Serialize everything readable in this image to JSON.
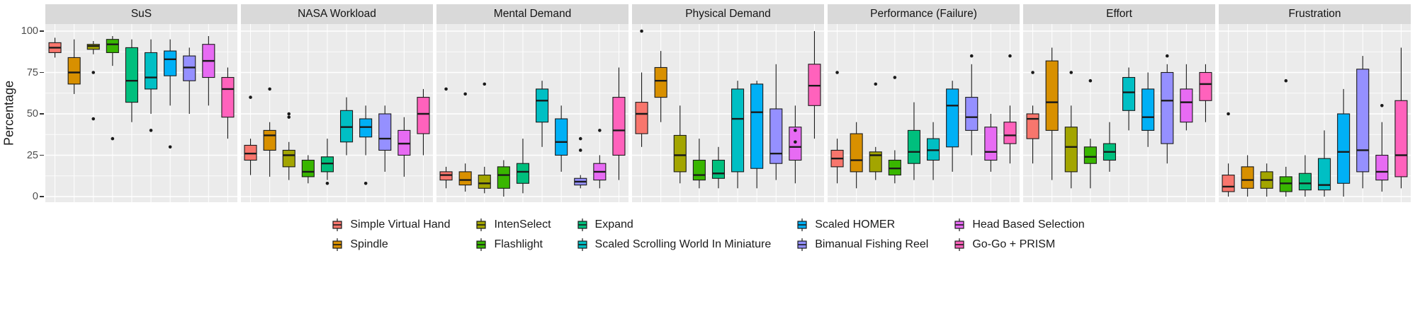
{
  "figure": {
    "ylabel": "Percentage"
  },
  "y_axis": {
    "ticks": [
      0,
      25,
      50,
      75,
      100
    ]
  },
  "chart_data": {
    "type": "boxplot",
    "ylabel": "Percentage",
    "ylim": [
      0,
      100
    ],
    "y_ticks": [
      0,
      25,
      50,
      75,
      100
    ],
    "grid": true,
    "legend_position": "bottom",
    "box_format": [
      "low_whisker",
      "q1",
      "median",
      "q3",
      "high_whisker"
    ],
    "techniques": [
      {
        "label": "Simple Virtual Hand",
        "color": "#F8766D"
      },
      {
        "label": "Spindle",
        "color": "#D89000"
      },
      {
        "label": "IntenSelect",
        "color": "#A3A500"
      },
      {
        "label": "Flashlight",
        "color": "#39B600"
      },
      {
        "label": "Expand",
        "color": "#00BF7D"
      },
      {
        "label": "Scaled Scrolling World In Miniature",
        "color": "#00BFC4"
      },
      {
        "label": "Scaled HOMER",
        "color": "#00B0F6"
      },
      {
        "label": "Bimanual Fishing Reel",
        "color": "#9590FF"
      },
      {
        "label": "Head Based Selection",
        "color": "#E76BF3"
      },
      {
        "label": "Go-Go + PRISM",
        "color": "#FF62BC"
      }
    ],
    "facets": [
      {
        "title": "SuS",
        "boxes": [
          [
            84,
            87,
            90,
            93,
            96
          ],
          [
            62,
            68,
            75,
            84,
            95
          ],
          [
            86,
            89,
            91,
            92,
            94
          ],
          [
            79,
            87,
            92,
            95,
            97
          ],
          [
            45,
            57,
            70,
            90,
            95
          ],
          [
            50,
            65,
            72,
            87,
            95
          ],
          [
            55,
            73,
            83,
            88,
            95
          ],
          [
            50,
            70,
            78,
            85,
            90
          ],
          [
            55,
            72,
            82,
            92,
            97
          ],
          [
            35,
            48,
            65,
            72,
            78
          ]
        ],
        "outliers": [
          [],
          [],
          [
            75,
            47
          ],
          [
            35
          ],
          [],
          [
            40
          ],
          [
            30
          ],
          [],
          [],
          []
        ]
      },
      {
        "title": "NASA Workload",
        "boxes": [
          [
            13,
            22,
            26,
            31,
            35
          ],
          [
            12,
            28,
            37,
            40,
            45
          ],
          [
            10,
            18,
            25,
            28,
            33
          ],
          [
            8,
            12,
            15,
            22,
            25
          ],
          [
            10,
            15,
            20,
            24,
            35
          ],
          [
            25,
            33,
            42,
            52,
            60
          ],
          [
            25,
            36,
            42,
            47,
            55
          ],
          [
            15,
            28,
            35,
            50,
            55
          ],
          [
            12,
            25,
            32,
            40,
            48
          ],
          [
            25,
            38,
            50,
            60,
            65
          ]
        ],
        "outliers": [
          [
            60
          ],
          [
            65
          ],
          [
            48,
            50
          ],
          [],
          [
            8
          ],
          [],
          [
            8
          ],
          [],
          [],
          []
        ]
      },
      {
        "title": "Mental Demand",
        "boxes": [
          [
            5,
            10,
            13,
            15,
            18
          ],
          [
            3,
            7,
            10,
            15,
            20
          ],
          [
            2,
            5,
            8,
            13,
            18
          ],
          [
            0,
            5,
            13,
            18,
            22
          ],
          [
            2,
            8,
            15,
            20,
            35
          ],
          [
            30,
            45,
            58,
            65,
            70
          ],
          [
            15,
            25,
            33,
            47,
            55
          ],
          [
            5,
            7,
            9,
            11,
            13
          ],
          [
            5,
            10,
            15,
            20,
            25
          ],
          [
            10,
            25,
            40,
            60,
            78
          ]
        ],
        "outliers": [
          [
            65
          ],
          [
            62
          ],
          [
            68
          ],
          [],
          [],
          [],
          [],
          [
            35,
            28
          ],
          [
            40
          ],
          []
        ]
      },
      {
        "title": "Physical Demand",
        "boxes": [
          [
            30,
            38,
            50,
            57,
            75
          ],
          [
            45,
            60,
            70,
            78,
            88
          ],
          [
            8,
            15,
            25,
            37,
            55
          ],
          [
            5,
            10,
            13,
            22,
            35
          ],
          [
            5,
            11,
            14,
            22,
            30
          ],
          [
            5,
            15,
            47,
            65,
            70
          ],
          [
            5,
            17,
            51,
            68,
            70
          ],
          [
            10,
            20,
            26,
            53,
            80
          ],
          [
            8,
            22,
            30,
            42,
            55
          ],
          [
            35,
            55,
            67,
            80,
            100
          ]
        ],
        "outliers": [
          [
            100
          ],
          [],
          [],
          [],
          [],
          [],
          [],
          [],
          [
            40,
            33
          ],
          []
        ]
      },
      {
        "title": "Performance (Failure)",
        "boxes": [
          [
            8,
            18,
            23,
            28,
            35
          ],
          [
            5,
            15,
            22,
            38,
            45
          ],
          [
            10,
            15,
            25,
            27,
            30
          ],
          [
            8,
            13,
            17,
            22,
            28
          ],
          [
            10,
            20,
            27,
            40,
            57
          ],
          [
            10,
            22,
            28,
            35,
            45
          ],
          [
            15,
            30,
            55,
            65,
            70
          ],
          [
            25,
            40,
            48,
            60,
            80
          ],
          [
            15,
            22,
            27,
            42,
            50
          ],
          [
            20,
            32,
            37,
            45,
            55
          ]
        ],
        "outliers": [
          [
            75
          ],
          [],
          [
            68
          ],
          [
            72
          ],
          [],
          [],
          [],
          [
            85
          ],
          [],
          [
            85
          ]
        ]
      },
      {
        "title": "Effort",
        "boxes": [
          [
            20,
            35,
            47,
            50,
            55
          ],
          [
            10,
            40,
            57,
            82,
            90
          ],
          [
            5,
            15,
            30,
            42,
            55
          ],
          [
            5,
            20,
            24,
            30,
            35
          ],
          [
            15,
            22,
            27,
            32,
            45
          ],
          [
            40,
            52,
            63,
            72,
            78
          ],
          [
            30,
            40,
            48,
            65,
            75
          ],
          [
            20,
            32,
            58,
            75,
            80
          ],
          [
            40,
            45,
            57,
            65,
            80
          ],
          [
            45,
            58,
            68,
            75,
            80
          ]
        ],
        "outliers": [
          [
            75
          ],
          [],
          [
            75
          ],
          [
            70
          ],
          [],
          [],
          [],
          [
            85
          ],
          [],
          []
        ]
      },
      {
        "title": "Frustration",
        "boxes": [
          [
            0,
            3,
            6,
            13,
            20
          ],
          [
            0,
            5,
            10,
            18,
            25
          ],
          [
            0,
            5,
            10,
            15,
            20
          ],
          [
            0,
            3,
            8,
            12,
            18
          ],
          [
            0,
            4,
            8,
            14,
            25
          ],
          [
            0,
            4,
            7,
            23,
            40
          ],
          [
            0,
            8,
            27,
            50,
            65
          ],
          [
            5,
            15,
            28,
            77,
            85
          ],
          [
            3,
            10,
            15,
            25,
            45
          ],
          [
            5,
            12,
            25,
            58,
            90
          ]
        ],
        "outliers": [
          [
            50
          ],
          [],
          [],
          [
            70
          ],
          [],
          [],
          [],
          [],
          [
            55
          ],
          []
        ]
      }
    ],
    "style": {
      "strip_background": "#d9d9d9",
      "panel_background": "#ebebeb",
      "gridline_color": "#ffffff",
      "box_outline": "#1a1a1a"
    }
  }
}
